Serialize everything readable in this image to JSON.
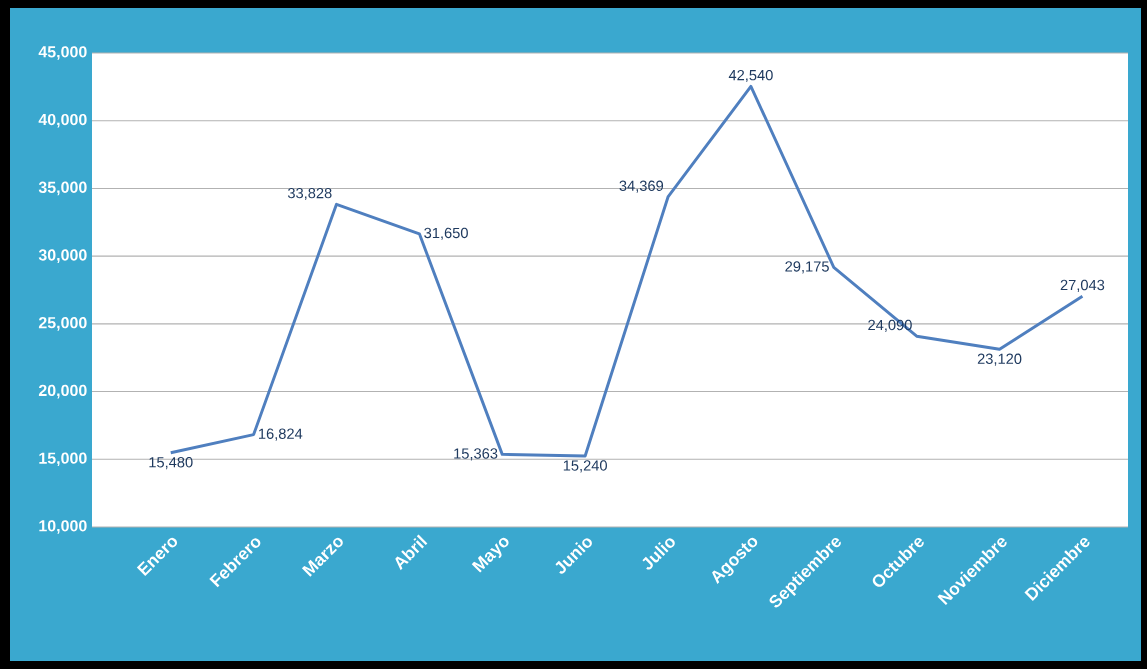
{
  "chart_data": {
    "type": "line",
    "categories": [
      "Enero",
      "Febrero",
      "Marzo",
      "Abril",
      "Mayo",
      "Junio",
      "Julio",
      "Agosto",
      "Septiembre",
      "Octubre",
      "Noviembre",
      "Diciembre"
    ],
    "values": [
      15480,
      16824,
      33828,
      31650,
      15363,
      15240,
      34369,
      42540,
      29175,
      24090,
      23120,
      27043
    ],
    "value_labels": [
      "15,480",
      "16,824",
      "33,828",
      "31,650",
      "15,363",
      "15,240",
      "34,369",
      "42,540",
      "29,175",
      "24,090",
      "23,120",
      "27,043"
    ],
    "color": "#4f7fbf",
    "ylim": [
      10000,
      45000
    ],
    "yticks": [
      {
        "value": 10000,
        "label": "10,000"
      },
      {
        "value": 15000,
        "label": "15,000"
      },
      {
        "value": 20000,
        "label": "20,000"
      },
      {
        "value": 25000,
        "label": "25,000"
      },
      {
        "value": 30000,
        "label": "30,000"
      },
      {
        "value": 35000,
        "label": "35,000"
      },
      {
        "value": 40000,
        "label": "40,000"
      },
      {
        "value": 45000,
        "label": "45,000"
      }
    ],
    "grid": "y",
    "marker": "none",
    "line_style": "solid"
  }
}
